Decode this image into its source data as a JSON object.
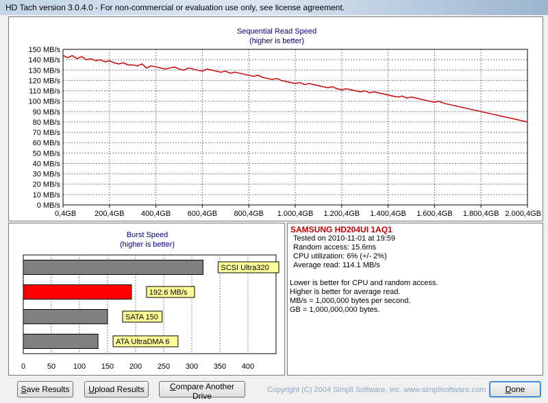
{
  "window": {
    "title": "HD Tach version 3.0.4.0  - For non-commercial or evaluation use only, see license agreement."
  },
  "sequential_chart": {
    "title": "Sequential Read Speed",
    "subtitle": "(higher is better)"
  },
  "burst_chart": {
    "title": "Burst Speed",
    "subtitle": "(higher is better)"
  },
  "chart_data": [
    {
      "type": "line",
      "title": "Sequential Read Speed",
      "subtitle": "(higher is better)",
      "xlabel": "",
      "ylabel": "",
      "x_unit": "GB",
      "y_unit": "MB/s",
      "xlim": [
        0,
        2000
      ],
      "ylim": [
        0,
        150
      ],
      "x_ticks": [
        "0,4GB",
        "200,4GB",
        "400,4GB",
        "600,4GB",
        "800,4GB",
        "1.000,4GB",
        "1.200,4GB",
        "1.400,4GB",
        "1.600,4GB",
        "1.800,4GB",
        "2.000,4GB"
      ],
      "y_ticks": [
        "0 MB/s",
        "10 MB/s",
        "20 MB/s",
        "30 MB/s",
        "40 MB/s",
        "50 MB/s",
        "60 MB/s",
        "70 MB/s",
        "80 MB/s",
        "90 MB/s",
        "100 MB/s",
        "110 MB/s",
        "120 MB/s",
        "130 MB/s",
        "140 MB/s",
        "150 MB/s"
      ],
      "grid": true,
      "line_color": "#cc0000",
      "series": [
        {
          "x": [
            0,
            20,
            40,
            60,
            80,
            100,
            120,
            140,
            160,
            180,
            200,
            220,
            240,
            260,
            280,
            300,
            320,
            340,
            360,
            380,
            400,
            420,
            440,
            460,
            480,
            500,
            520,
            540,
            560,
            580,
            600,
            620,
            640,
            660,
            680,
            700,
            720,
            740,
            760,
            780,
            800,
            820,
            840,
            860,
            880,
            900,
            920,
            940,
            960,
            980,
            1000,
            1020,
            1040,
            1060,
            1080,
            1100,
            1120,
            1140,
            1160,
            1180,
            1200,
            1220,
            1240,
            1260,
            1280,
            1300,
            1320,
            1340,
            1360,
            1380,
            1400,
            1420,
            1440,
            1460,
            1480,
            1500,
            1520,
            1540,
            1560,
            1580,
            1600,
            1620,
            1640,
            1660,
            1680,
            1700,
            1720,
            1740,
            1760,
            1780,
            1800,
            1820,
            1840,
            1860,
            1880,
            1900,
            1920,
            1940,
            1960,
            1980,
            2000
          ],
          "values": [
            144,
            142,
            144,
            141,
            143,
            140,
            141,
            139,
            140,
            138,
            139,
            137,
            136,
            137,
            135,
            135,
            134,
            136,
            132,
            134,
            133,
            132,
            131,
            132,
            133,
            131,
            130,
            132,
            131,
            130,
            129,
            131,
            130,
            129,
            128,
            129,
            127,
            128,
            127,
            126,
            125,
            124,
            125,
            123,
            122,
            121,
            122,
            120,
            119,
            118,
            117,
            118,
            116,
            117,
            116,
            115,
            114,
            113,
            114,
            112,
            111,
            112,
            111,
            110,
            109,
            110,
            108,
            109,
            108,
            107,
            106,
            105,
            104,
            105,
            103,
            104,
            103,
            102,
            101,
            100,
            99,
            100,
            98,
            97,
            96,
            95,
            94,
            93,
            92,
            91,
            90,
            89,
            88,
            87,
            86,
            85,
            84,
            83,
            82,
            81,
            80
          ]
        }
      ]
    },
    {
      "type": "bar",
      "orientation": "horizontal",
      "title": "Burst Speed",
      "subtitle": "(higher is better)",
      "xlim": [
        0,
        450
      ],
      "x_ticks": [
        "0",
        "50",
        "100",
        "150",
        "200",
        "250",
        "300",
        "350",
        "400"
      ],
      "grid": true,
      "categories": [
        "SCSI Ultra320",
        "192.6 MB/s",
        "SATA 150",
        "ATA UltraDMA 6"
      ],
      "values": [
        320,
        192.6,
        150,
        133
      ],
      "colors": [
        "#808080",
        "#ff0000",
        "#808080",
        "#808080"
      ]
    }
  ],
  "info": {
    "drive_name": "SAMSUNG HD204UI 1AQ1",
    "lines": [
      "Tested on 2010-11-01 at 19:59",
      "Random access: 15.6ms",
      "CPU utilization: 6% (+/- 2%)",
      "Average read: 114.1 MB/s"
    ],
    "notes": [
      "Lower is better for CPU and random access.",
      "Higher is better for average read.",
      "MB/s = 1,000,000 bytes per second.",
      "GB = 1,000,000,000 bytes."
    ]
  },
  "buttons": {
    "save_u": "S",
    "save_rest": "ave Results",
    "upload_u": "U",
    "upload_rest": "pload Results",
    "compare_u": "C",
    "compare_rest": "ompare Another Drive",
    "done_u": "D",
    "done_rest": "one"
  },
  "footer": {
    "copyright": "Copyright (C) 2004 Simpli Software, Inc. www.simplisoftware.com"
  }
}
